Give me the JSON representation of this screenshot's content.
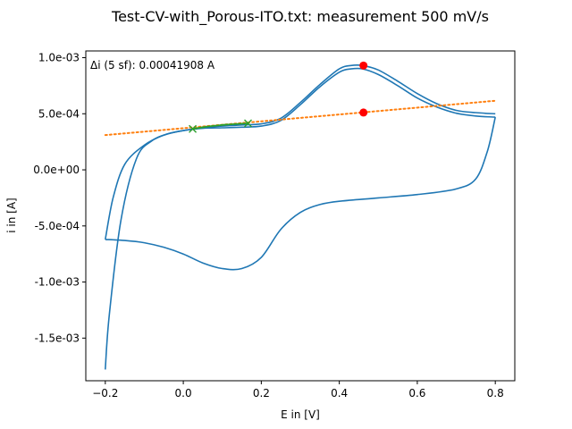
{
  "chart_data": {
    "type": "line",
    "title": "Test-CV-with_Porous-ITO.txt: measurement 500 mV/s",
    "xlabel": "E in [V]",
    "ylabel": "i in [A]",
    "xlim": [
      -0.25,
      0.85
    ],
    "ylim": [
      -0.00188,
      0.00106
    ],
    "xticks": [
      -0.2,
      0.0,
      0.2,
      0.4,
      0.6,
      0.8
    ],
    "xtick_labels": [
      "−0.2",
      "0.0",
      "0.2",
      "0.4",
      "0.6",
      "0.8"
    ],
    "yticks": [
      0.001,
      0.0005,
      0.0,
      -0.0005,
      -0.001,
      -0.0015
    ],
    "ytick_labels": [
      "1.0e-03",
      "5.0e-04",
      "0.0e+00",
      "-5.0e-04",
      "-1.0e-03",
      "-1.5e-03"
    ],
    "annotation": "Δi (5 sf): 0.00041908 A",
    "grid": false,
    "colors": {
      "cv": "#1f77b4",
      "fit": "#2ca02c",
      "baseline": "#ff7f0e",
      "peak": "#ff0000"
    },
    "series": [
      {
        "kind": "cv-anodic-scan-1",
        "x": [
          -0.2,
          -0.19,
          -0.16,
          -0.12,
          -0.08,
          -0.04,
          0.0,
          0.05,
          0.1,
          0.15,
          0.2,
          0.25,
          0.3,
          0.35,
          0.4,
          0.43,
          0.46,
          0.5,
          0.55,
          0.6,
          0.65,
          0.7,
          0.75,
          0.8
        ],
        "y": [
          -0.00178,
          -0.0013,
          -0.00045,
          0.0001,
          0.00026,
          0.00032,
          0.00035,
          0.00037,
          0.000375,
          0.00038,
          0.00039,
          0.00044,
          0.00058,
          0.00074,
          0.00087,
          0.0009,
          0.0009,
          0.00085,
          0.00075,
          0.00064,
          0.00056,
          0.000505,
          0.00048,
          0.00047
        ]
      },
      {
        "kind": "cv-cathodic-scan",
        "x": [
          0.8,
          0.78,
          0.75,
          0.7,
          0.6,
          0.5,
          0.4,
          0.35,
          0.3,
          0.25,
          0.2,
          0.15,
          0.1,
          0.05,
          0.0,
          -0.05,
          -0.1,
          -0.15,
          -0.2
        ],
        "y": [
          0.00047,
          0.00017,
          -8e-05,
          -0.00017,
          -0.00022,
          -0.00025,
          -0.00028,
          -0.00031,
          -0.00038,
          -0.00053,
          -0.00078,
          -0.00088,
          -0.00088,
          -0.00083,
          -0.00075,
          -0.00069,
          -0.00065,
          -0.00063,
          -0.00062
        ]
      },
      {
        "kind": "cv-anodic-scan-2",
        "x": [
          -0.2,
          -0.18,
          -0.15,
          -0.1,
          -0.05,
          0.0,
          0.05,
          0.1,
          0.15,
          0.2,
          0.25,
          0.3,
          0.35,
          0.4,
          0.43,
          0.46,
          0.5,
          0.55,
          0.6,
          0.65,
          0.7,
          0.75,
          0.8
        ],
        "y": [
          -0.00062,
          -0.00025,
          5e-05,
          0.00022,
          0.00031,
          0.00035,
          0.000375,
          0.00039,
          0.0004,
          0.00041,
          0.00046,
          0.0006,
          0.00076,
          0.0009,
          0.00093,
          0.00093,
          0.00089,
          0.00079,
          0.00068,
          0.00059,
          0.00053,
          0.00051,
          0.0005
        ]
      }
    ],
    "fit_segment": {
      "x": [
        0.024,
        0.06,
        0.1,
        0.14,
        0.166
      ],
      "y": [
        0.000365,
        0.000385,
        0.0004,
        0.00041,
        0.000415
      ]
    },
    "fit_points": [
      {
        "x": 0.024,
        "y": 0.000365
      },
      {
        "x": 0.166,
        "y": 0.000415
      }
    ],
    "baseline": {
      "x": [
        -0.2,
        0.8
      ],
      "y": [
        0.00031,
        0.000616
      ]
    },
    "peak_points": [
      {
        "x": 0.462,
        "y": 0.00093
      },
      {
        "x": 0.462,
        "y": 0.000511
      }
    ]
  }
}
